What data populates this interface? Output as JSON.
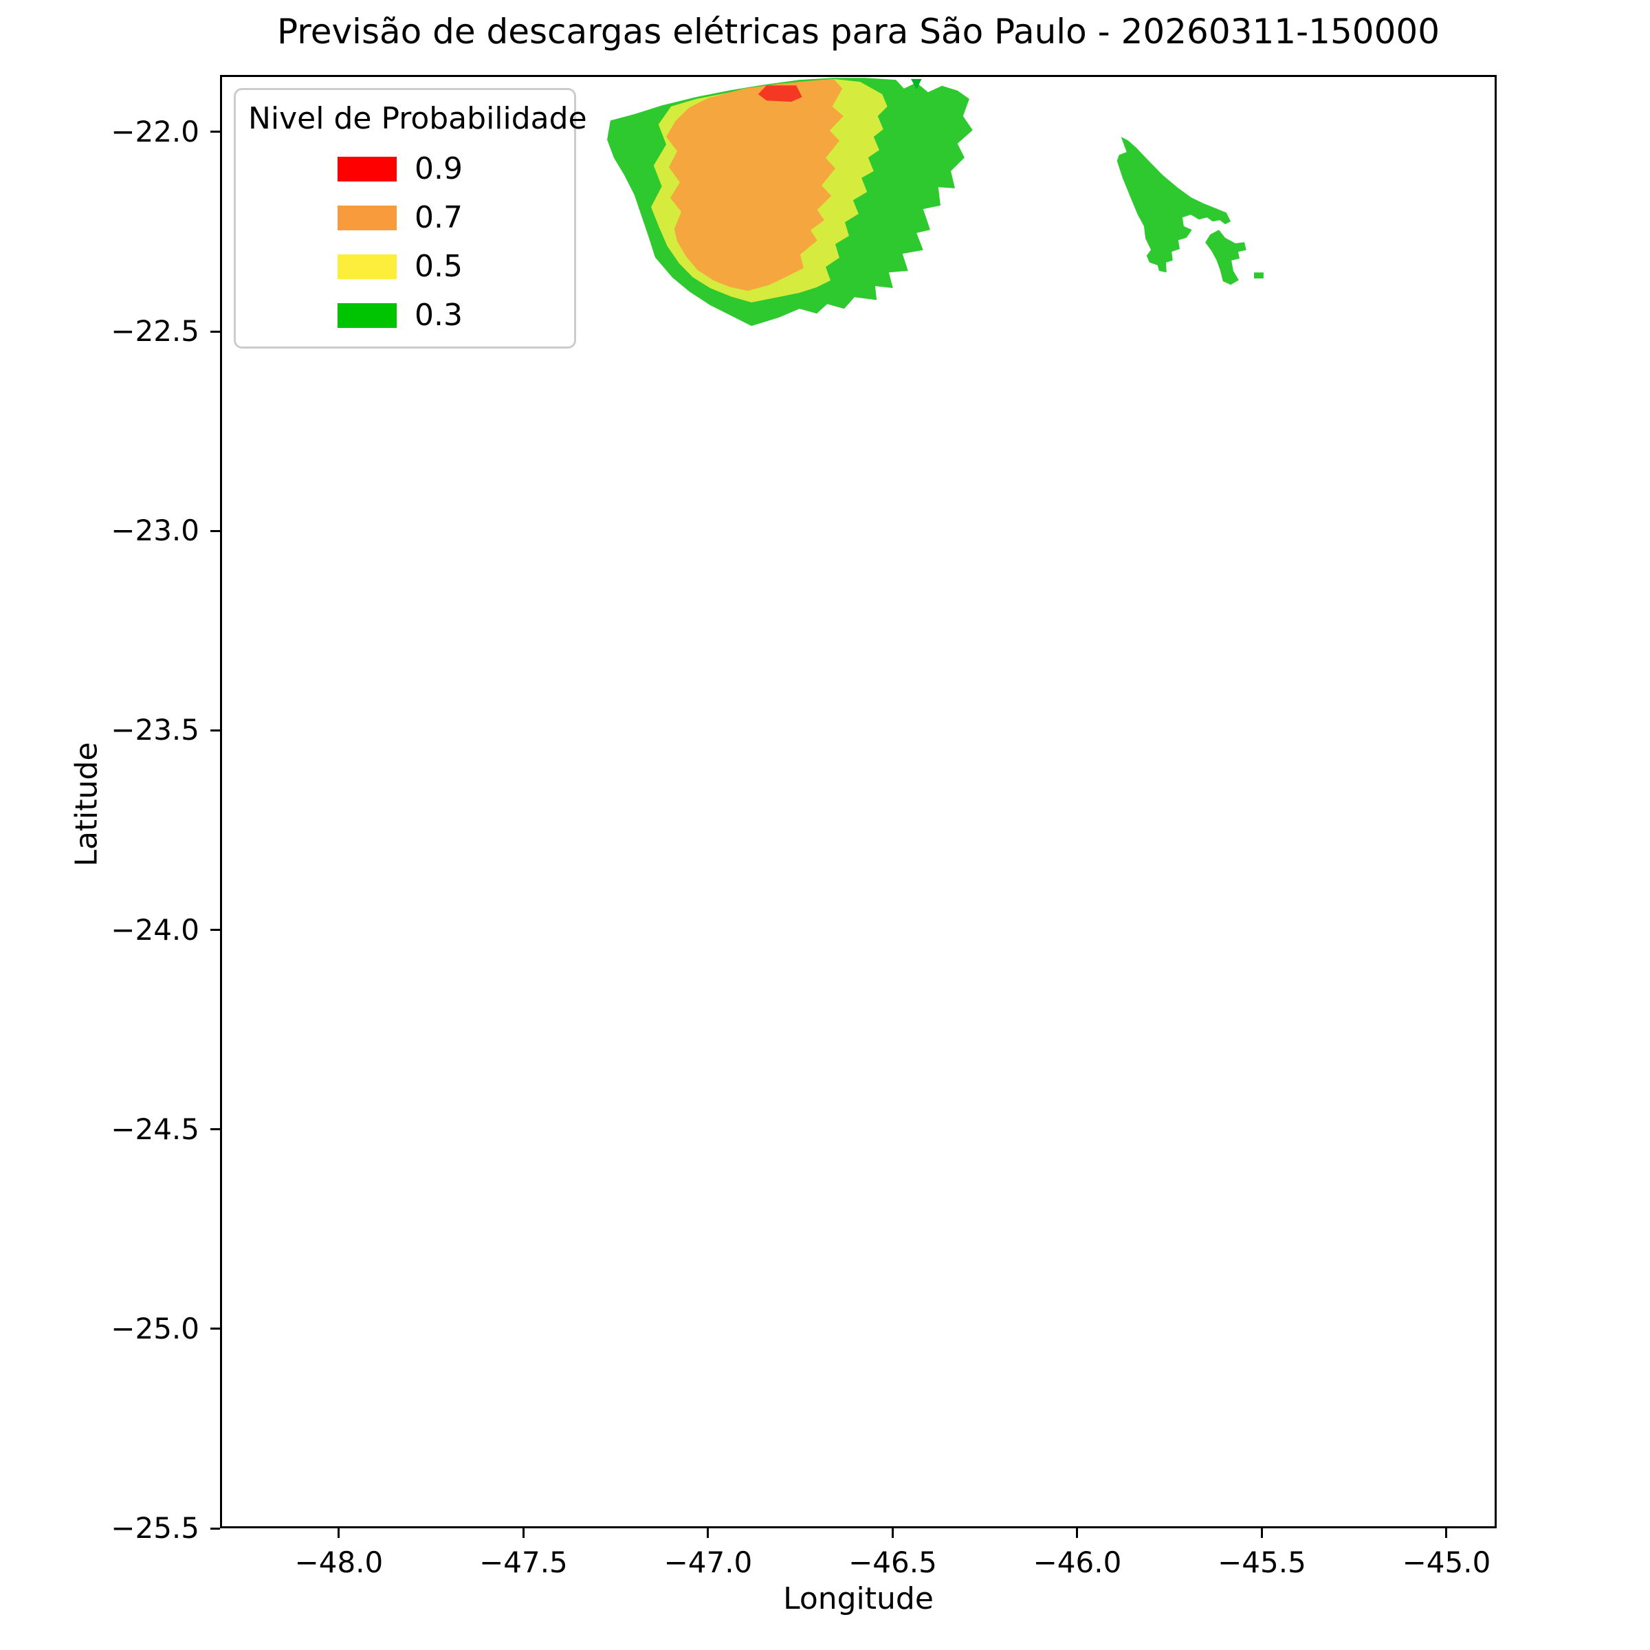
{
  "figure": {
    "title": "Previsão de descargas elétricas para São Paulo - 20260311-150000",
    "xlabel": "Longitude",
    "ylabel": "Latitude"
  },
  "legend": {
    "title": "Nivel de Probabilidade",
    "entries": [
      {
        "label": "0.9",
        "color": "#ff0000"
      },
      {
        "label": "0.7",
        "color": "#f89b3c"
      },
      {
        "label": "0.5",
        "color": "#fcee3b"
      },
      {
        "label": "0.3",
        "color": "#00c400"
      }
    ]
  },
  "chart_data": {
    "type": "contour-map",
    "title": "Previsão de descargas elétricas para São Paulo - 20260311-150000",
    "xlabel": "Longitude",
    "ylabel": "Latitude",
    "xlim": [
      -48.322,
      -44.864
    ],
    "ylim": [
      -25.5,
      -21.857
    ],
    "grid": false,
    "legend_position": "upper left",
    "xticks": [
      {
        "v": -48.0,
        "label": "−48.0"
      },
      {
        "v": -47.5,
        "label": "−47.5"
      },
      {
        "v": -47.0,
        "label": "−47.0"
      },
      {
        "v": -46.5,
        "label": "−46.5"
      },
      {
        "v": -46.0,
        "label": "−46.0"
      },
      {
        "v": -45.5,
        "label": "−45.5"
      },
      {
        "v": -45.0,
        "label": "−45.0"
      }
    ],
    "yticks": [
      {
        "v": -22.0,
        "label": "−22.0"
      },
      {
        "v": -22.5,
        "label": "−22.5"
      },
      {
        "v": -23.0,
        "label": "−23.0"
      },
      {
        "v": -23.5,
        "label": "−23.5"
      },
      {
        "v": -24.0,
        "label": "−24.0"
      },
      {
        "v": -24.5,
        "label": "−24.5"
      },
      {
        "v": -25.0,
        "label": "−25.0"
      },
      {
        "v": -25.5,
        "label": "−25.5"
      }
    ],
    "probability_levels": [
      {
        "level": 0.9,
        "map_fill": "#f53823",
        "legend_color": "#ff0000"
      },
      {
        "level": 0.7,
        "map_fill": "#f5a63f",
        "legend_color": "#f89b3c"
      },
      {
        "level": 0.5,
        "map_fill": "#d5ec3e",
        "legend_color": "#fcee3b"
      },
      {
        "level": 0.3,
        "map_fill": "#2ec92e",
        "legend_color": "#00c400"
      }
    ],
    "regions": [
      {
        "name": "prob-region-0.3-main",
        "level": 0.3,
        "fill": "#2ec92e",
        "points": [
          [
            -47.27,
            -21.966
          ],
          [
            -47.205,
            -21.95
          ],
          [
            -47.13,
            -21.928
          ],
          [
            -47.037,
            -21.907
          ],
          [
            -46.944,
            -21.89
          ],
          [
            -46.851,
            -21.876
          ],
          [
            -46.758,
            -21.864
          ],
          [
            -46.665,
            -21.859
          ],
          [
            -46.581,
            -21.859
          ],
          [
            -46.497,
            -21.864
          ],
          [
            -46.475,
            -21.886
          ],
          [
            -46.441,
            -21.871
          ],
          [
            -46.41,
            -21.895
          ],
          [
            -46.372,
            -21.879
          ],
          [
            -46.33,
            -21.891
          ],
          [
            -46.298,
            -21.912
          ],
          [
            -46.315,
            -21.955
          ],
          [
            -46.289,
            -21.99
          ],
          [
            -46.33,
            -22.024
          ],
          [
            -46.311,
            -22.059
          ],
          [
            -46.348,
            -22.093
          ],
          [
            -46.337,
            -22.136
          ],
          [
            -46.382,
            -22.133
          ],
          [
            -46.376,
            -22.179
          ],
          [
            -46.423,
            -22.188
          ],
          [
            -46.404,
            -22.24
          ],
          [
            -46.441,
            -22.248
          ],
          [
            -46.423,
            -22.291
          ],
          [
            -46.479,
            -22.3
          ],
          [
            -46.464,
            -22.343
          ],
          [
            -46.516,
            -22.347
          ],
          [
            -46.505,
            -22.386
          ],
          [
            -46.553,
            -22.381
          ],
          [
            -46.549,
            -22.416
          ],
          [
            -46.609,
            -22.409
          ],
          [
            -46.637,
            -22.438
          ],
          [
            -46.683,
            -22.426
          ],
          [
            -46.711,
            -22.45
          ],
          [
            -46.758,
            -22.438
          ],
          [
            -46.814,
            -22.46
          ],
          [
            -46.888,
            -22.481
          ],
          [
            -46.944,
            -22.455
          ],
          [
            -47.0,
            -22.429
          ],
          [
            -47.056,
            -22.395
          ],
          [
            -47.102,
            -22.36
          ],
          [
            -47.149,
            -22.309
          ],
          [
            -47.167,
            -22.257
          ],
          [
            -47.186,
            -22.205
          ],
          [
            -47.205,
            -22.153
          ],
          [
            -47.233,
            -22.102
          ],
          [
            -47.261,
            -22.059
          ],
          [
            -47.279,
            -22.014
          ]
        ]
      },
      {
        "name": "prob-region-0.5-main",
        "level": 0.5,
        "fill": "#d5ec3e",
        "points": [
          [
            -47.106,
            -21.931
          ],
          [
            -47.14,
            -21.976
          ],
          [
            -47.119,
            -22.026
          ],
          [
            -47.153,
            -22.079
          ],
          [
            -47.131,
            -22.131
          ],
          [
            -47.16,
            -22.183
          ],
          [
            -47.138,
            -22.234
          ],
          [
            -47.116,
            -22.281
          ],
          [
            -47.084,
            -22.324
          ],
          [
            -47.047,
            -22.359
          ],
          [
            -47.0,
            -22.386
          ],
          [
            -46.944,
            -22.407
          ],
          [
            -46.888,
            -22.422
          ],
          [
            -46.823,
            -22.41
          ],
          [
            -46.758,
            -22.398
          ],
          [
            -46.711,
            -22.384
          ],
          [
            -46.674,
            -22.367
          ],
          [
            -46.687,
            -22.333
          ],
          [
            -46.65,
            -22.31
          ],
          [
            -46.661,
            -22.276
          ],
          [
            -46.624,
            -22.255
          ],
          [
            -46.635,
            -22.221
          ],
          [
            -46.598,
            -22.2
          ],
          [
            -46.613,
            -22.166
          ],
          [
            -46.575,
            -22.145
          ],
          [
            -46.59,
            -22.11
          ],
          [
            -46.557,
            -22.093
          ],
          [
            -46.572,
            -22.059
          ],
          [
            -46.542,
            -22.04
          ],
          [
            -46.557,
            -22.007
          ],
          [
            -46.531,
            -21.988
          ],
          [
            -46.546,
            -21.955
          ],
          [
            -46.52,
            -21.931
          ],
          [
            -46.534,
            -21.9
          ],
          [
            -46.594,
            -21.869
          ],
          [
            -46.665,
            -21.862
          ],
          [
            -46.758,
            -21.869
          ],
          [
            -46.851,
            -21.881
          ],
          [
            -46.944,
            -21.895
          ],
          [
            -47.037,
            -21.912
          ]
        ]
      },
      {
        "name": "prob-region-0.7-main",
        "level": 0.7,
        "fill": "#f5a63f",
        "points": [
          [
            -47.006,
            -21.91
          ],
          [
            -46.907,
            -21.886
          ],
          [
            -46.814,
            -21.874
          ],
          [
            -46.721,
            -21.866
          ],
          [
            -46.665,
            -21.862
          ],
          [
            -46.642,
            -21.886
          ],
          [
            -46.669,
            -21.931
          ],
          [
            -46.639,
            -21.955
          ],
          [
            -46.676,
            -21.991
          ],
          [
            -46.65,
            -22.017
          ],
          [
            -46.687,
            -22.06
          ],
          [
            -46.661,
            -22.086
          ],
          [
            -46.698,
            -22.129
          ],
          [
            -46.672,
            -22.155
          ],
          [
            -46.71,
            -22.19
          ],
          [
            -46.691,
            -22.216
          ],
          [
            -46.728,
            -22.241
          ],
          [
            -46.71,
            -22.267
          ],
          [
            -46.756,
            -22.302
          ],
          [
            -46.747,
            -22.336
          ],
          [
            -46.803,
            -22.362
          ],
          [
            -46.842,
            -22.379
          ],
          [
            -46.898,
            -22.393
          ],
          [
            -46.948,
            -22.383
          ],
          [
            -46.991,
            -22.367
          ],
          [
            -47.034,
            -22.341
          ],
          [
            -47.065,
            -22.307
          ],
          [
            -47.089,
            -22.269
          ],
          [
            -47.097,
            -22.238
          ],
          [
            -47.078,
            -22.195
          ],
          [
            -47.108,
            -22.16
          ],
          [
            -47.082,
            -22.121
          ],
          [
            -47.112,
            -22.083
          ],
          [
            -47.089,
            -22.043
          ],
          [
            -47.119,
            -22.007
          ],
          [
            -47.093,
            -21.966
          ],
          [
            -47.056,
            -21.933
          ]
        ]
      },
      {
        "name": "prob-region-0.9-main",
        "level": 0.9,
        "fill": "#f53823",
        "points": [
          [
            -46.87,
            -21.9
          ],
          [
            -46.847,
            -21.878
          ],
          [
            -46.767,
            -21.878
          ],
          [
            -46.751,
            -21.907
          ],
          [
            -46.78,
            -21.919
          ],
          [
            -46.847,
            -21.916
          ]
        ]
      },
      {
        "name": "prob-region-0.3-notch",
        "level": 0.3,
        "fill": "#00b22d",
        "points": [
          [
            -46.456,
            -21.862
          ],
          [
            -46.427,
            -21.862
          ],
          [
            -46.441,
            -21.888
          ]
        ]
      },
      {
        "name": "prob-region-0.3-east-arrow",
        "level": 0.3,
        "fill": "#2ec92e",
        "points": [
          [
            -45.887,
            -22.007
          ],
          [
            -45.872,
            -22.045
          ],
          [
            -45.892,
            -22.052
          ],
          [
            -45.898,
            -22.067
          ],
          [
            -45.883,
            -22.11
          ],
          [
            -45.86,
            -22.162
          ],
          [
            -45.842,
            -22.202
          ],
          [
            -45.825,
            -22.231
          ],
          [
            -45.821,
            -22.262
          ],
          [
            -45.806,
            -22.29
          ],
          [
            -45.818,
            -22.305
          ],
          [
            -45.81,
            -22.322
          ],
          [
            -45.788,
            -22.329
          ],
          [
            -45.784,
            -22.343
          ],
          [
            -45.764,
            -22.347
          ],
          [
            -45.765,
            -22.322
          ],
          [
            -45.747,
            -22.317
          ],
          [
            -45.75,
            -22.295
          ],
          [
            -45.728,
            -22.288
          ],
          [
            -45.732,
            -22.266
          ],
          [
            -45.71,
            -22.26
          ],
          [
            -45.695,
            -22.24
          ],
          [
            -45.717,
            -22.231
          ],
          [
            -45.721,
            -22.209
          ],
          [
            -45.698,
            -22.202
          ],
          [
            -45.676,
            -22.214
          ],
          [
            -45.654,
            -22.209
          ],
          [
            -45.639,
            -22.219
          ],
          [
            -45.62,
            -22.216
          ],
          [
            -45.605,
            -22.226
          ],
          [
            -45.59,
            -22.219
          ],
          [
            -45.602,
            -22.197
          ],
          [
            -45.631,
            -22.186
          ],
          [
            -45.663,
            -22.174
          ],
          [
            -45.697,
            -22.159
          ],
          [
            -45.734,
            -22.134
          ],
          [
            -45.775,
            -22.102
          ],
          [
            -45.812,
            -22.067
          ],
          [
            -45.846,
            -22.034
          ],
          [
            -45.868,
            -22.016
          ]
        ]
      },
      {
        "name": "prob-region-0.3-east-small",
        "level": 0.3,
        "fill": "#2ec92e",
        "points": [
          [
            -45.646,
            -22.252
          ],
          [
            -45.622,
            -22.24
          ],
          [
            -45.605,
            -22.26
          ],
          [
            -45.577,
            -22.274
          ],
          [
            -45.553,
            -22.271
          ],
          [
            -45.548,
            -22.291
          ],
          [
            -45.57,
            -22.295
          ],
          [
            -45.566,
            -22.312
          ],
          [
            -45.588,
            -22.317
          ],
          [
            -45.583,
            -22.343
          ],
          [
            -45.568,
            -22.366
          ],
          [
            -45.59,
            -22.378
          ],
          [
            -45.611,
            -22.369
          ],
          [
            -45.618,
            -22.343
          ],
          [
            -45.628,
            -22.317
          ],
          [
            -45.642,
            -22.293
          ],
          [
            -45.659,
            -22.272
          ]
        ]
      },
      {
        "name": "prob-region-0.3-east-dash",
        "level": 0.3,
        "fill": "#2ec92e",
        "points": [
          [
            -45.527,
            -22.347
          ],
          [
            -45.501,
            -22.347
          ],
          [
            -45.501,
            -22.362
          ],
          [
            -45.527,
            -22.362
          ]
        ]
      }
    ]
  }
}
